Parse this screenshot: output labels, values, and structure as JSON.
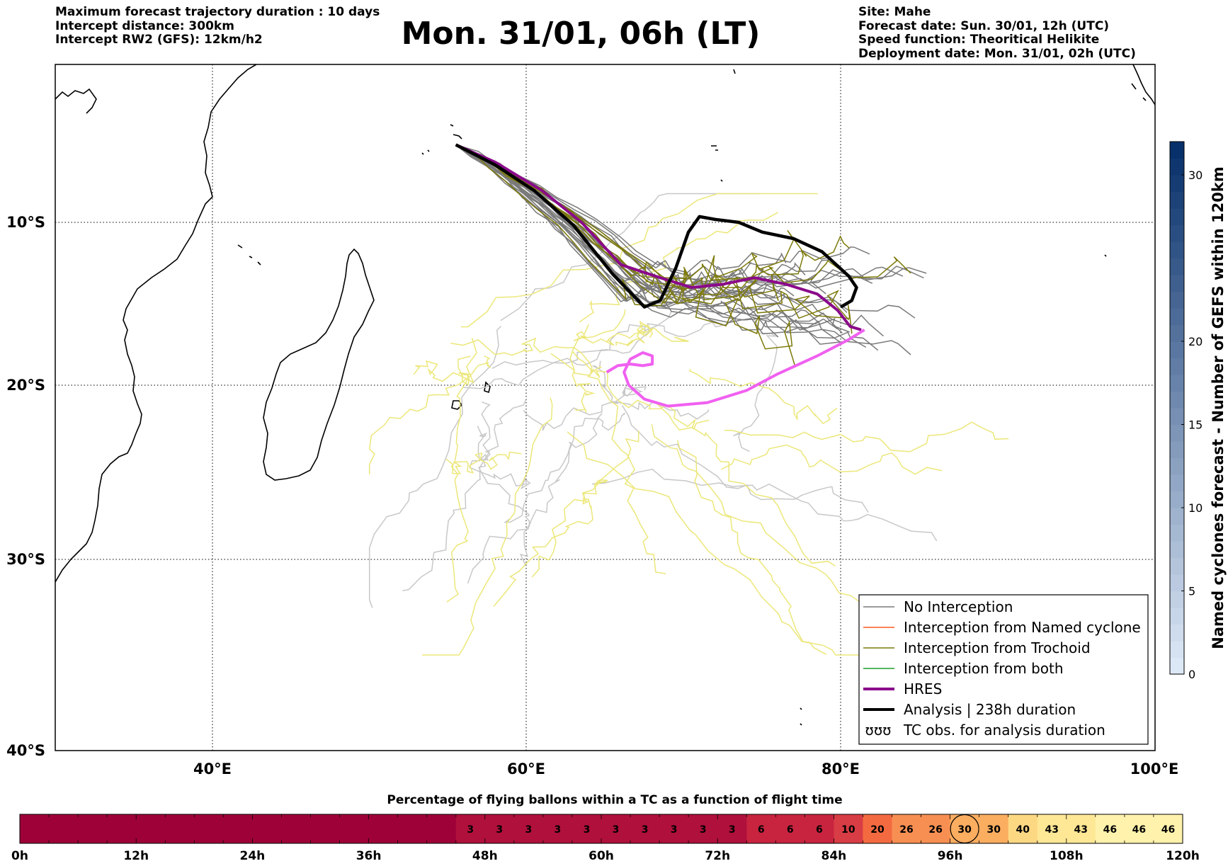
{
  "header": {
    "left": [
      "Maximum forecast trajectory duration : 10 days",
      "Intercept distance: 300km",
      "Intercept RW2 (GFS):  12km/h2"
    ],
    "title": "Mon. 31/01, 06h (LT)",
    "right": [
      "Site: Mahe",
      "Forecast date: Sun. 30/01, 12h (UTC)",
      "Speed function: Theoritical Helikite",
      "Deployment date: Mon. 31/01, 02h (UTC)"
    ]
  },
  "chart_data": [
    {
      "type": "map-trajectories",
      "region": "South-West Indian Ocean",
      "xticks": [
        "40°E",
        "60°E",
        "80°E",
        "100°E"
      ],
      "yticks": [
        "10°S",
        "20°S",
        "30°S",
        "40°S"
      ],
      "lon_range": [
        30,
        100
      ],
      "lat_range": [
        -40,
        1
      ],
      "colors": {
        "no_interception": "#7a7a7a",
        "no_interception_light": "#c8c8c8",
        "named_cyclone": "#ff5a1f",
        "trochoid": "#7d7a0a",
        "trochoid_light": "#ece77a",
        "both": "#1f9e2a",
        "hres": "#8a0a8a",
        "analysis": "#000000",
        "tc_obs": "#f060f0"
      },
      "legend": [
        {
          "label": "No Interception",
          "style": "no_interception"
        },
        {
          "label": "Interception from Named cyclone",
          "style": "named_cyclone"
        },
        {
          "label": "Interception from Trochoid",
          "style": "trochoid"
        },
        {
          "label": "Interception from both",
          "style": "both"
        },
        {
          "label": "HRES",
          "style": "hres"
        },
        {
          "label": "Analysis | 238h duration",
          "style": "analysis"
        },
        {
          "label": "TC obs. for analysis duration",
          "style": "tc_obs"
        }
      ],
      "hres": [
        [
          55.5,
          -4.6
        ],
        [
          58,
          -5.8
        ],
        [
          61,
          -7.8
        ],
        [
          63.5,
          -10
        ],
        [
          66,
          -12.6
        ],
        [
          68.5,
          -13.4
        ],
        [
          70.5,
          -14
        ],
        [
          72.5,
          -13.8
        ],
        [
          74.5,
          -13.4
        ],
        [
          76.5,
          -13.8
        ],
        [
          78.5,
          -14.4
        ],
        [
          79.8,
          -15.4
        ],
        [
          80.6,
          -16.4
        ],
        [
          81.3,
          -16.6
        ]
      ],
      "analysis": [
        [
          55.5,
          -4.6
        ],
        [
          58,
          -6
        ],
        [
          60.5,
          -7.8
        ],
        [
          63,
          -10.2
        ],
        [
          65.5,
          -13.2
        ],
        [
          67.5,
          -15.2
        ],
        [
          68.5,
          -14.8
        ],
        [
          69.5,
          -12.8
        ],
        [
          70.3,
          -10.6
        ],
        [
          71,
          -9.6
        ],
        [
          72,
          -9.8
        ],
        [
          73.5,
          -10
        ],
        [
          75,
          -10.6
        ],
        [
          77,
          -11
        ],
        [
          78.8,
          -11.8
        ],
        [
          80.5,
          -13.3
        ],
        [
          81,
          -14
        ],
        [
          80.7,
          -14.8
        ],
        [
          80,
          -15.2
        ]
      ],
      "tc_obs": [
        [
          81.5,
          -16.6
        ],
        [
          80.5,
          -17.2
        ],
        [
          78.5,
          -18.2
        ],
        [
          76,
          -19.3
        ],
        [
          74,
          -20.3
        ],
        [
          71.5,
          -21
        ],
        [
          69,
          -21.2
        ],
        [
          67.5,
          -20.8
        ],
        [
          66.5,
          -20
        ],
        [
          66.2,
          -19.2
        ],
        [
          66.6,
          -18.4
        ],
        [
          67.4,
          -18
        ],
        [
          68,
          -18.2
        ],
        [
          68,
          -18.7
        ],
        [
          67.4,
          -18.8
        ],
        [
          66.6,
          -18.7
        ],
        [
          65.8,
          -18.8
        ],
        [
          65.1,
          -19.2
        ]
      ],
      "colorbar": {
        "title": "Named cyclones forecast - Number of GEFS within 120km",
        "ticks": [
          "0",
          "5",
          "10",
          "15",
          "20",
          "30"
        ],
        "range": [
          0,
          32
        ],
        "color_low": "#dde8f6",
        "color_high": "#08306b"
      }
    },
    {
      "type": "heatmap",
      "title": "Percentage of flying ballons within a TC as a function of flight time",
      "xticks": [
        "0h",
        "12h",
        "24h",
        "36h",
        "48h",
        "60h",
        "72h",
        "84h",
        "96h",
        "108h",
        "120h"
      ],
      "step_hours": 3,
      "values": [
        0,
        0,
        0,
        0,
        0,
        0,
        0,
        0,
        0,
        0,
        0,
        0,
        0,
        0,
        0,
        3,
        3,
        3,
        3,
        3,
        3,
        3,
        3,
        3,
        3,
        6,
        6,
        6,
        10,
        20,
        26,
        26,
        30,
        30,
        40,
        43,
        43,
        46,
        46,
        46
      ],
      "circled_index": 32
    }
  ]
}
